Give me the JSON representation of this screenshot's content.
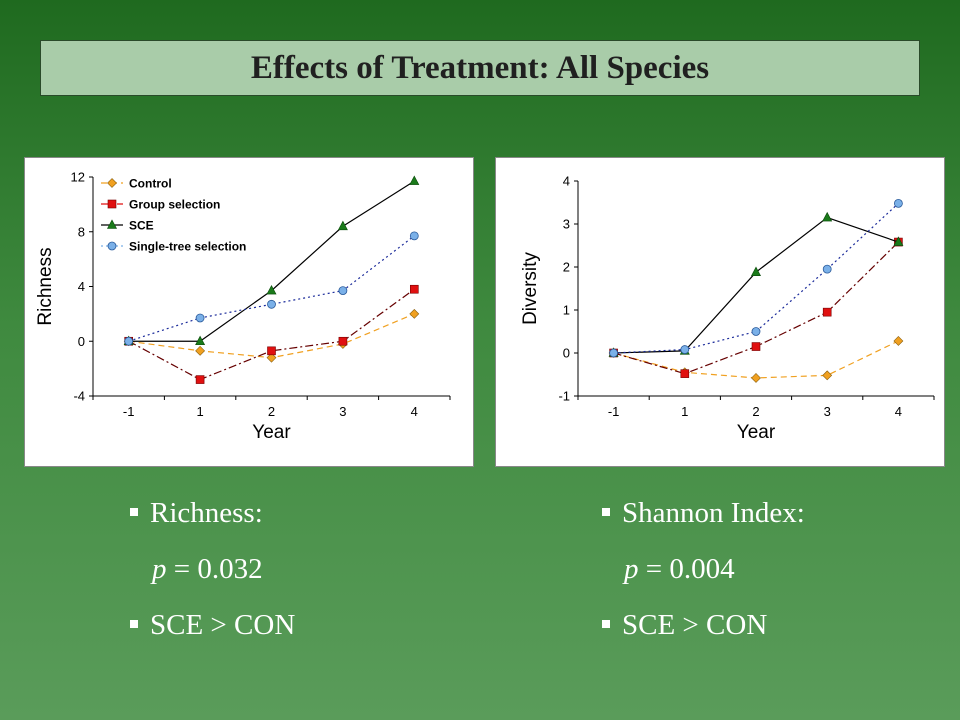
{
  "title": "Effects of Treatment: All Species",
  "chart_data": [
    {
      "type": "line",
      "xlabel": "Year",
      "ylabel": "Richness",
      "categories": [
        "-1",
        "1",
        "2",
        "3",
        "4"
      ],
      "ylim": [
        -4,
        12
      ],
      "yticks": [
        -4,
        0,
        4,
        8,
        12
      ],
      "legend_position": "top-left",
      "grid": false,
      "series": [
        {
          "name": "Control",
          "color": "#f0a020",
          "marker": "diamond",
          "dash": "dashed",
          "values": [
            0,
            -0.7,
            -1.2,
            -0.2,
            2.0
          ]
        },
        {
          "name": "Group selection",
          "color": "#e01010",
          "marker": "square",
          "dash": "dashdot",
          "values": [
            0,
            -2.8,
            -0.7,
            0,
            3.8
          ]
        },
        {
          "name": "SCE",
          "color": "#1a7a1a",
          "marker": "triangle",
          "dash": "solid",
          "values": [
            0,
            0,
            3.7,
            8.4,
            11.7
          ]
        },
        {
          "name": "Single-tree selection",
          "color": "#7ab0e8",
          "marker": "circle",
          "dash": "dotted",
          "values": [
            0,
            1.7,
            2.7,
            3.7,
            7.7
          ]
        }
      ]
    },
    {
      "type": "line",
      "xlabel": "Year",
      "ylabel": "Diversity",
      "categories": [
        "-1",
        "1",
        "2",
        "3",
        "4"
      ],
      "ylim": [
        -1,
        4
      ],
      "yticks": [
        -1,
        0,
        1,
        2,
        3,
        4
      ],
      "legend_position": "none",
      "grid": false,
      "series": [
        {
          "name": "Control",
          "color": "#f0a020",
          "marker": "diamond",
          "dash": "dashed",
          "values": [
            0,
            -0.45,
            -0.58,
            -0.52,
            0.28
          ]
        },
        {
          "name": "Group selection",
          "color": "#e01010",
          "marker": "square",
          "dash": "dashdot",
          "values": [
            0,
            -0.48,
            0.15,
            0.95,
            2.58
          ]
        },
        {
          "name": "SCE",
          "color": "#1a7a1a",
          "marker": "triangle",
          "dash": "solid",
          "values": [
            0,
            0.05,
            1.88,
            3.15,
            2.58
          ]
        },
        {
          "name": "Single-tree selection",
          "color": "#7ab0e8",
          "marker": "circle",
          "dash": "dotted",
          "values": [
            0,
            0.08,
            0.5,
            1.95,
            3.48
          ]
        }
      ]
    }
  ],
  "bullets_left": {
    "line1": "Richness:",
    "p_label": "p",
    "p_value": " = 0.032",
    "line3": "SCE > CON"
  },
  "bullets_right": {
    "line1": "Shannon Index:",
    "p_label": "p",
    "p_value": " = 0.004",
    "line3": "SCE > CON"
  }
}
